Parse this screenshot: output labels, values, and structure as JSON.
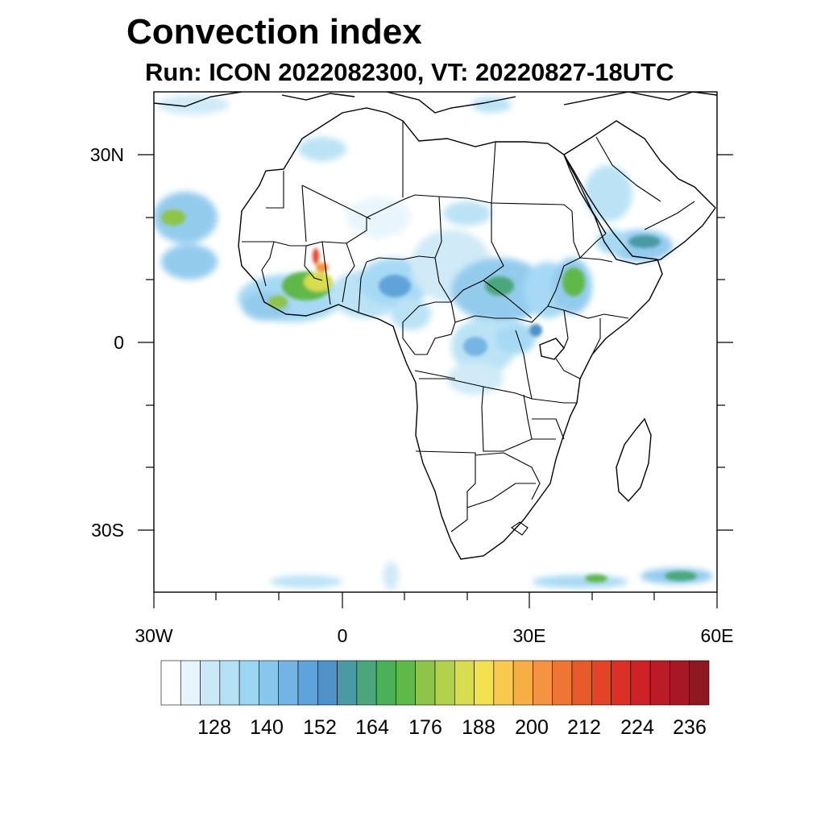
{
  "title": "Convection index",
  "subtitle": "Run: ICON 2022082300,  VT: 20220827-18UTC",
  "axes": {
    "lat_labels": [
      "30N",
      "0",
      "30S"
    ],
    "lon_labels": [
      "30W",
      "0",
      "30E",
      "60E"
    ]
  },
  "colorbar": {
    "labels": [
      "128",
      "140",
      "152",
      "164",
      "176",
      "188",
      "200",
      "212",
      "224",
      "236"
    ],
    "colors": [
      "#ffffff",
      "#e6f4fc",
      "#cbe8f7",
      "#b4e0f5",
      "#9dd6f3",
      "#88c6ec",
      "#74b4e4",
      "#5ea3d9",
      "#4f92c8",
      "#4a9aa3",
      "#4aa77c",
      "#4bb158",
      "#60b84a",
      "#8dc54a",
      "#b3d24c",
      "#d8dc4f",
      "#f3e04f",
      "#f8c94b",
      "#f7ae45",
      "#f49440",
      "#ef7535",
      "#e85a2c",
      "#e34428",
      "#dc2f26",
      "#cf2228",
      "#bd1a28",
      "#a71724",
      "#8f1820"
    ]
  },
  "chart_data": {
    "type": "heatmap",
    "title": "Convection index",
    "subtitle": "Run: ICON 2022082300,  VT: 20220827-18UTC",
    "x_range": [
      "30W",
      "60E"
    ],
    "y_range": [
      "40S",
      "40N"
    ],
    "x_ticks": [
      "30W",
      "0",
      "30E",
      "60E"
    ],
    "y_ticks": [
      "30N",
      "0",
      "30S"
    ],
    "colorbar_levels": [
      128,
      140,
      152,
      164,
      176,
      188,
      200,
      212,
      224,
      236
    ]
  }
}
